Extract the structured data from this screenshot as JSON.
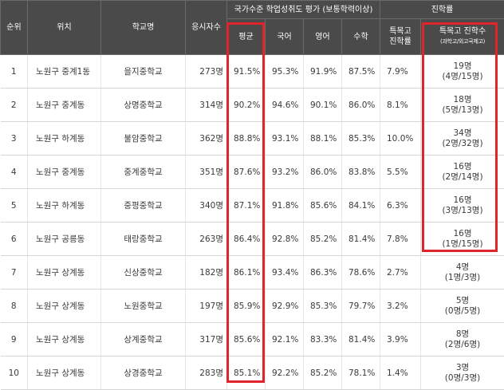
{
  "headers": {
    "rank": "순위",
    "location": "위치",
    "school": "학교명",
    "test_takers": "응시자수",
    "assessment_group": "국가수준 학업성취도 평가 (보통학력이상)",
    "admission_group": "진학률",
    "average": "평균",
    "korean": "국어",
    "english": "영어",
    "math": "수학",
    "special_rate_line1": "특목고",
    "special_rate_line2": "진학률",
    "special_count_line1": "특목고 진학수",
    "special_count_line2": "(과학고/외고국제고)"
  },
  "rows": [
    {
      "rank": "1",
      "location": "노원구 중계1동",
      "school": "을지중학교",
      "test_takers": "273명",
      "average": "91.5%",
      "korean": "95.3%",
      "english": "91.9%",
      "math": "87.5%",
      "special_rate": "7.9%",
      "admit_total": "19명",
      "admit_detail": "(4명/15명)"
    },
    {
      "rank": "2",
      "location": "노원구 중계동",
      "school": "상명중학교",
      "test_takers": "314명",
      "average": "90.2%",
      "korean": "94.6%",
      "english": "90.1%",
      "math": "86.0%",
      "special_rate": "8.1%",
      "admit_total": "18명",
      "admit_detail": "(5명/13명)"
    },
    {
      "rank": "3",
      "location": "노원구 하계동",
      "school": "불암중학교",
      "test_takers": "362명",
      "average": "88.8%",
      "korean": "93.1%",
      "english": "88.1%",
      "math": "85.3%",
      "special_rate": "10.0%",
      "admit_total": "34명",
      "admit_detail": "(2명/32명)"
    },
    {
      "rank": "4",
      "location": "노원구 중계동",
      "school": "중계중학교",
      "test_takers": "351명",
      "average": "87.6%",
      "korean": "93.2%",
      "english": "86.0%",
      "math": "83.8%",
      "special_rate": "5.5%",
      "admit_total": "16명",
      "admit_detail": "(2명/14명)"
    },
    {
      "rank": "5",
      "location": "노원구 하계동",
      "school": "중평중학교",
      "test_takers": "340명",
      "average": "87.1%",
      "korean": "91.8%",
      "english": "85.6%",
      "math": "84.1%",
      "special_rate": "6.3%",
      "admit_total": "16명",
      "admit_detail": "(3명/13명)"
    },
    {
      "rank": "6",
      "location": "노원구 공릉동",
      "school": "태랑중학교",
      "test_takers": "263명",
      "average": "86.4%",
      "korean": "92.8%",
      "english": "85.2%",
      "math": "81.4%",
      "special_rate": "7.8%",
      "admit_total": "16명",
      "admit_detail": "(1명/15명)"
    },
    {
      "rank": "7",
      "location": "노원구 상계동",
      "school": "신상중학교",
      "test_takers": "182명",
      "average": "86.1%",
      "korean": "93.4%",
      "english": "86.3%",
      "math": "78.6%",
      "special_rate": "2.7%",
      "admit_total": "4명",
      "admit_detail": "(1명/3명)"
    },
    {
      "rank": "8",
      "location": "노원구 상계동",
      "school": "노원중학교",
      "test_takers": "197명",
      "average": "85.9%",
      "korean": "92.9%",
      "english": "85.3%",
      "math": "79.7%",
      "special_rate": "3.2%",
      "admit_total": "5명",
      "admit_detail": "(0명/5명)"
    },
    {
      "rank": "9",
      "location": "노원구 상계동",
      "school": "상계중학교",
      "test_takers": "317명",
      "average": "85.6%",
      "korean": "92.1%",
      "english": "83.3%",
      "math": "81.4%",
      "special_rate": "3.9%",
      "admit_total": "8명",
      "admit_detail": "(2명/6명)"
    },
    {
      "rank": "10",
      "location": "노원구 상계동",
      "school": "상경중학교",
      "test_takers": "283명",
      "average": "85.1%",
      "korean": "92.2%",
      "english": "85.2%",
      "math": "78.1%",
      "special_rate": "1.4%",
      "admit_total": "3명",
      "admit_detail": "(0명/3명)"
    }
  ],
  "colors": {
    "header_bg": "#4a4a4a",
    "highlight": "#e0242b"
  }
}
